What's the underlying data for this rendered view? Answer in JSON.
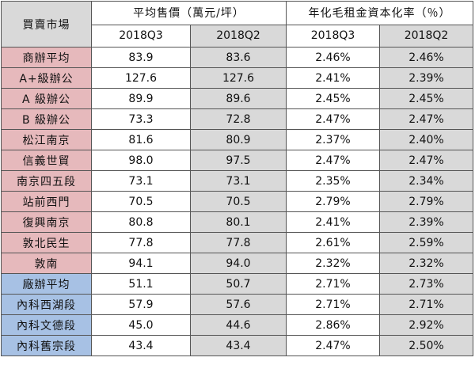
{
  "header": {
    "market_label": "買賣市場",
    "price_group_label": "平均售價（萬元/坪）",
    "yield_group_label": "年化毛租金資本化率（％）",
    "periods": [
      "2018Q3",
      "2018Q2",
      "2018Q3",
      "2018Q2"
    ]
  },
  "colors": {
    "office_group": "#e6b9bc",
    "factory_office_group": "#a7c1e4",
    "shaded_column": "#d9d9d9"
  },
  "rows": [
    {
      "market": "商辦平均",
      "group": "office",
      "price_q3": "83.9",
      "price_q2": "83.6",
      "yield_q3": "2.46%",
      "yield_q2": "2.46%"
    },
    {
      "market": "A+級辦公",
      "group": "office",
      "price_q3": "127.6",
      "price_q2": "127.6",
      "yield_q3": "2.41%",
      "yield_q2": "2.39%"
    },
    {
      "market": "A 級辦公",
      "group": "office",
      "price_q3": "89.9",
      "price_q2": "89.6",
      "yield_q3": "2.45%",
      "yield_q2": "2.45%"
    },
    {
      "market": "B 級辦公",
      "group": "office",
      "price_q3": "73.3",
      "price_q2": "72.8",
      "yield_q3": "2.47%",
      "yield_q2": "2.47%"
    },
    {
      "market": "松江南京",
      "group": "office",
      "price_q3": "81.6",
      "price_q2": "80.9",
      "yield_q3": "2.37%",
      "yield_q2": "2.40%"
    },
    {
      "market": "信義世貿",
      "group": "office",
      "price_q3": "98.0",
      "price_q2": "97.5",
      "yield_q3": "2.47%",
      "yield_q2": "2.47%"
    },
    {
      "market": "南京四五段",
      "group": "office",
      "price_q3": "73.1",
      "price_q2": "73.1",
      "yield_q3": "2.35%",
      "yield_q2": "2.34%"
    },
    {
      "market": "站前西門",
      "group": "office",
      "price_q3": "70.5",
      "price_q2": "70.5",
      "yield_q3": "2.79%",
      "yield_q2": "2.79%"
    },
    {
      "market": "復興南京",
      "group": "office",
      "price_q3": "80.8",
      "price_q2": "80.1",
      "yield_q3": "2.41%",
      "yield_q2": "2.39%"
    },
    {
      "market": "敦北民生",
      "group": "office",
      "price_q3": "77.8",
      "price_q2": "77.8",
      "yield_q3": "2.61%",
      "yield_q2": "2.59%"
    },
    {
      "market": "敦南",
      "group": "office",
      "price_q3": "94.1",
      "price_q2": "94.0",
      "yield_q3": "2.32%",
      "yield_q2": "2.32%"
    },
    {
      "market": "廠辦平均",
      "group": "factory",
      "price_q3": "51.1",
      "price_q2": "50.7",
      "yield_q3": "2.71%",
      "yield_q2": "2.73%"
    },
    {
      "market": "內科西湖段",
      "group": "factory",
      "price_q3": "57.9",
      "price_q2": "57.6",
      "yield_q3": "2.71%",
      "yield_q2": "2.71%"
    },
    {
      "market": "內科文德段",
      "group": "factory",
      "price_q3": "45.0",
      "price_q2": "44.6",
      "yield_q3": "2.86%",
      "yield_q2": "2.92%"
    },
    {
      "market": "內科舊宗段",
      "group": "factory",
      "price_q3": "43.4",
      "price_q2": "43.4",
      "yield_q3": "2.47%",
      "yield_q2": "2.50%"
    }
  ]
}
